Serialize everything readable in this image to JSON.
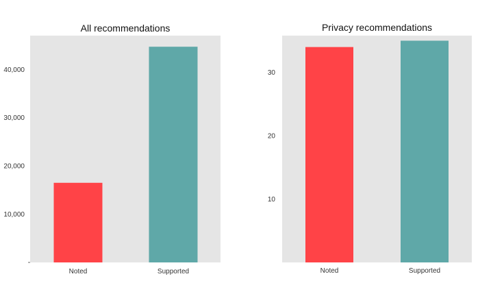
{
  "chart_data": [
    {
      "type": "bar",
      "title": "All recommendations",
      "categories": [
        "Noted",
        "Supported"
      ],
      "values": [
        16500,
        44700
      ],
      "xlabel": "",
      "ylabel": "",
      "ylim": [
        0,
        47000
      ],
      "yticks": [
        10000,
        20000,
        30000,
        40000
      ],
      "ytick_labels": [
        "10,000",
        "20,000",
        "30,000",
        "40,000"
      ],
      "grid": false,
      "colors": [
        "#ff4347",
        "#5fa8a8"
      ],
      "plot_background": "#e5e5e5"
    },
    {
      "type": "bar",
      "title": "Privacy recommendations",
      "categories": [
        "Noted",
        "Supported"
      ],
      "values": [
        34,
        35
      ],
      "xlabel": "",
      "ylabel": "",
      "ylim": [
        0,
        35.8
      ],
      "yticks": [
        10,
        20,
        30
      ],
      "ytick_labels": [
        "10",
        "20",
        "30"
      ],
      "grid": false,
      "colors": [
        "#ff4347",
        "#5fa8a8"
      ],
      "plot_background": "#e5e5e5"
    }
  ]
}
